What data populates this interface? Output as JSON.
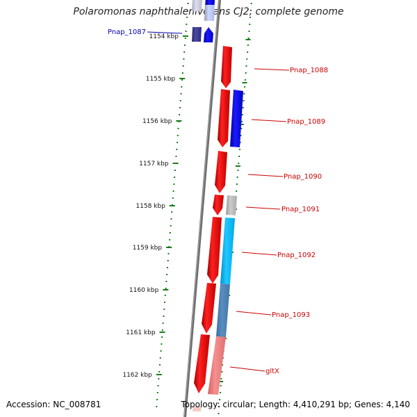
{
  "title": "Polaromonas naphthalenivorans CJ2, complete genome",
  "footer": {
    "accession": "Accession: NC_008781",
    "summary": "Topology: circular; Length: 4,410,291 bp; Genes: 4,140"
  },
  "colors": {
    "backbone": "#777777",
    "ticks": "#1a7a1a",
    "forward_gene": "#ee0000",
    "reverse_gene": "#0000ee",
    "label_red": "#cc0000",
    "label_blue": "#0000aa"
  },
  "ticks": [
    {
      "label": "1154 kbp"
    },
    {
      "label": "1155 kbp"
    },
    {
      "label": "1156 kbp"
    },
    {
      "label": "1157 kbp"
    },
    {
      "label": "1158 kbp"
    },
    {
      "label": "1159 kbp"
    },
    {
      "label": "1160 kbp"
    },
    {
      "label": "1161 kbp"
    },
    {
      "label": "1162 kbp"
    }
  ],
  "gene_labels": [
    {
      "name": "Pnap_1087",
      "side": "left",
      "color": "blue"
    },
    {
      "name": "Pnap_1088",
      "side": "right",
      "color": "red"
    },
    {
      "name": "Pnap_1089",
      "side": "right",
      "color": "red"
    },
    {
      "name": "Pnap_1090",
      "side": "right",
      "color": "red"
    },
    {
      "name": "Pnap_1091",
      "side": "right",
      "color": "red"
    },
    {
      "name": "Pnap_1092",
      "side": "right",
      "color": "red"
    },
    {
      "name": "Pnap_1093",
      "side": "right",
      "color": "red"
    },
    {
      "name": "gltX",
      "side": "right",
      "color": "red"
    }
  ]
}
